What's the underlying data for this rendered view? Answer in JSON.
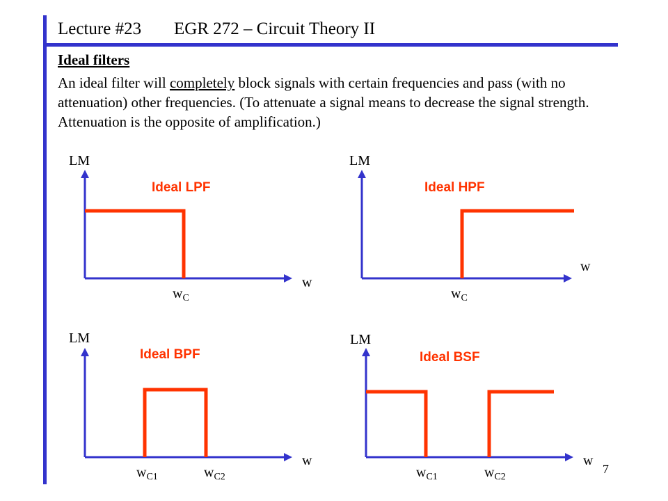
{
  "header": {
    "lecture": "Lecture #23",
    "course": "EGR 272 – Circuit Theory II"
  },
  "section_title": "Ideal filters",
  "paragraph": {
    "before": "An ideal filter will ",
    "emphasis": "completely",
    "after": " block signals with certain frequencies and pass (with no attenuation) other frequencies. (To attenuate a signal means to decrease the signal strength.  Attenuation is the opposite of amplification.)"
  },
  "page_number": "7",
  "colors": {
    "frame": "#3333cc",
    "response": "#ff3300",
    "axis": "#3333cc"
  },
  "plots": {
    "lpf": {
      "title": "Ideal LPF",
      "ylabel": "LM",
      "xlabel": "w",
      "cutoff": "w",
      "cutoff_sub": "C"
    },
    "hpf": {
      "title": "Ideal HPF",
      "ylabel": "LM",
      "xlabel": "w",
      "cutoff": "w",
      "cutoff_sub": "C"
    },
    "bpf": {
      "title": "Ideal BPF",
      "ylabel": "LM",
      "xlabel": "w",
      "cutoff1": "w",
      "cutoff1_sub": "C1",
      "cutoff2": "w",
      "cutoff2_sub": "C2"
    },
    "bsf": {
      "title": "Ideal BSF",
      "ylabel": "LM",
      "xlabel": "w",
      "cutoff1": "w",
      "cutoff1_sub": "C1",
      "cutoff2": "w",
      "cutoff2_sub": "C2"
    }
  }
}
